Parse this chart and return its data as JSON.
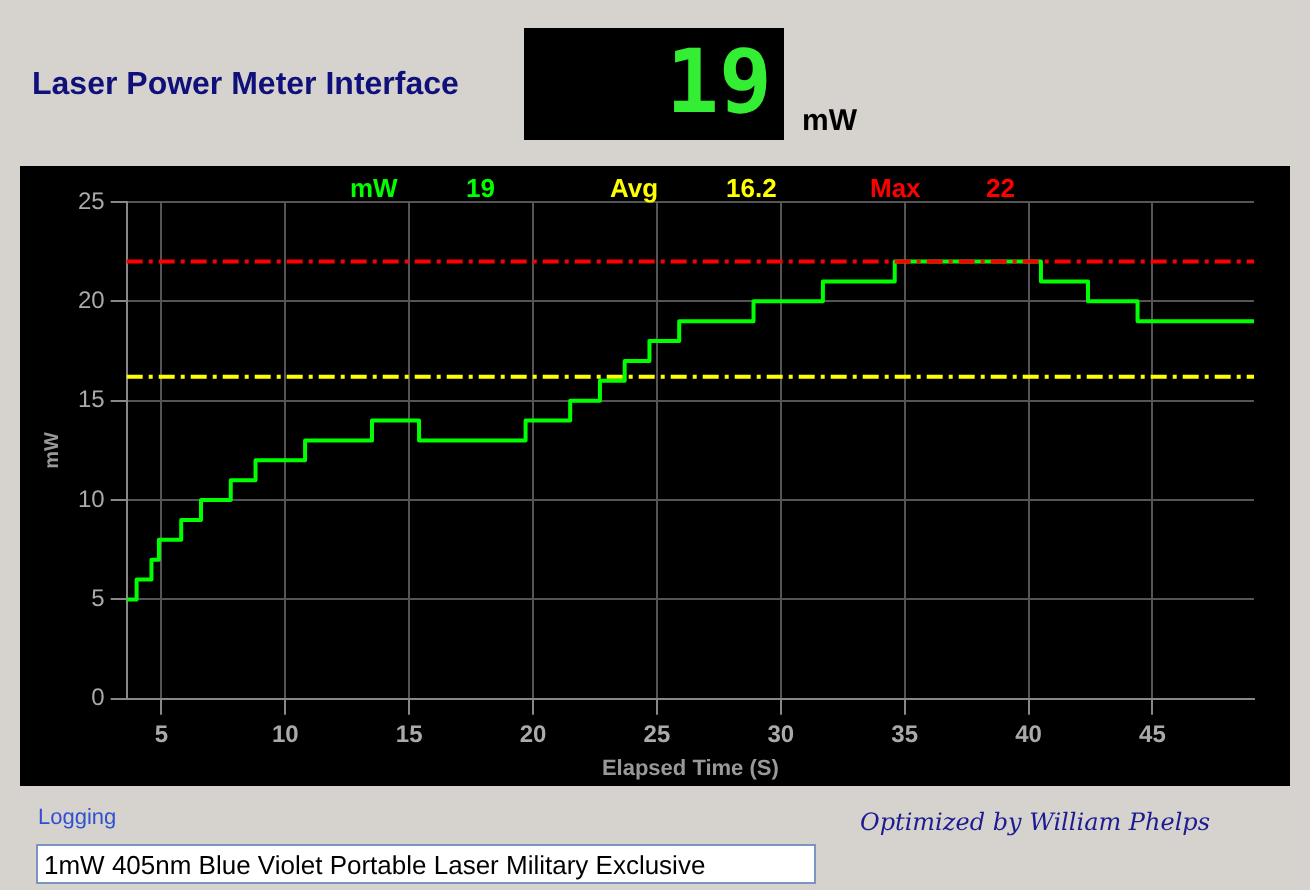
{
  "chart_data": {
    "type": "step",
    "title": "Laser Power Meter Interface",
    "xlabel": "Elapsed Time (S)",
    "ylabel": "mW",
    "series": [
      {
        "name": "mW",
        "color": "#00ff00",
        "x": [
          3.6,
          4.0,
          4.6,
          4.9,
          5.8,
          6.6,
          7.8,
          8.8,
          10.8,
          13.5,
          15.4,
          19.7,
          21.5,
          22.7,
          23.7,
          24.7,
          25.9,
          28.9,
          31.7,
          34.6,
          40.5,
          42.4,
          44.4,
          49.1
        ],
        "values": [
          5,
          6,
          7,
          8,
          9,
          10,
          11,
          12,
          13,
          14,
          13,
          14,
          15,
          16,
          17,
          18,
          19,
          20,
          21,
          22,
          21,
          20,
          19,
          19
        ]
      }
    ],
    "xlim": [
      3.6,
      49.1
    ],
    "xticks": [
      5,
      10,
      15,
      20,
      25,
      30,
      35,
      40,
      45
    ],
    "ylim": [
      0,
      25
    ],
    "yticks": [
      0,
      5,
      10,
      15,
      20,
      25
    ],
    "grid": true,
    "legend": "top",
    "ref_lines": [
      {
        "axis": "y",
        "value": 16.2,
        "label": "Avg",
        "color": "#ffff00",
        "line_style": "dashed"
      },
      {
        "axis": "y",
        "value": 22,
        "label": "Max",
        "color": "#ff0000",
        "line_style": "dashed"
      }
    ],
    "annotations": [
      "Logging",
      "1mW 405nm Blue Violet Portable Laser Military Exclusive",
      "Optimized by William Phelps",
      "19",
      "19",
      "16.2",
      "22"
    ]
  }
}
